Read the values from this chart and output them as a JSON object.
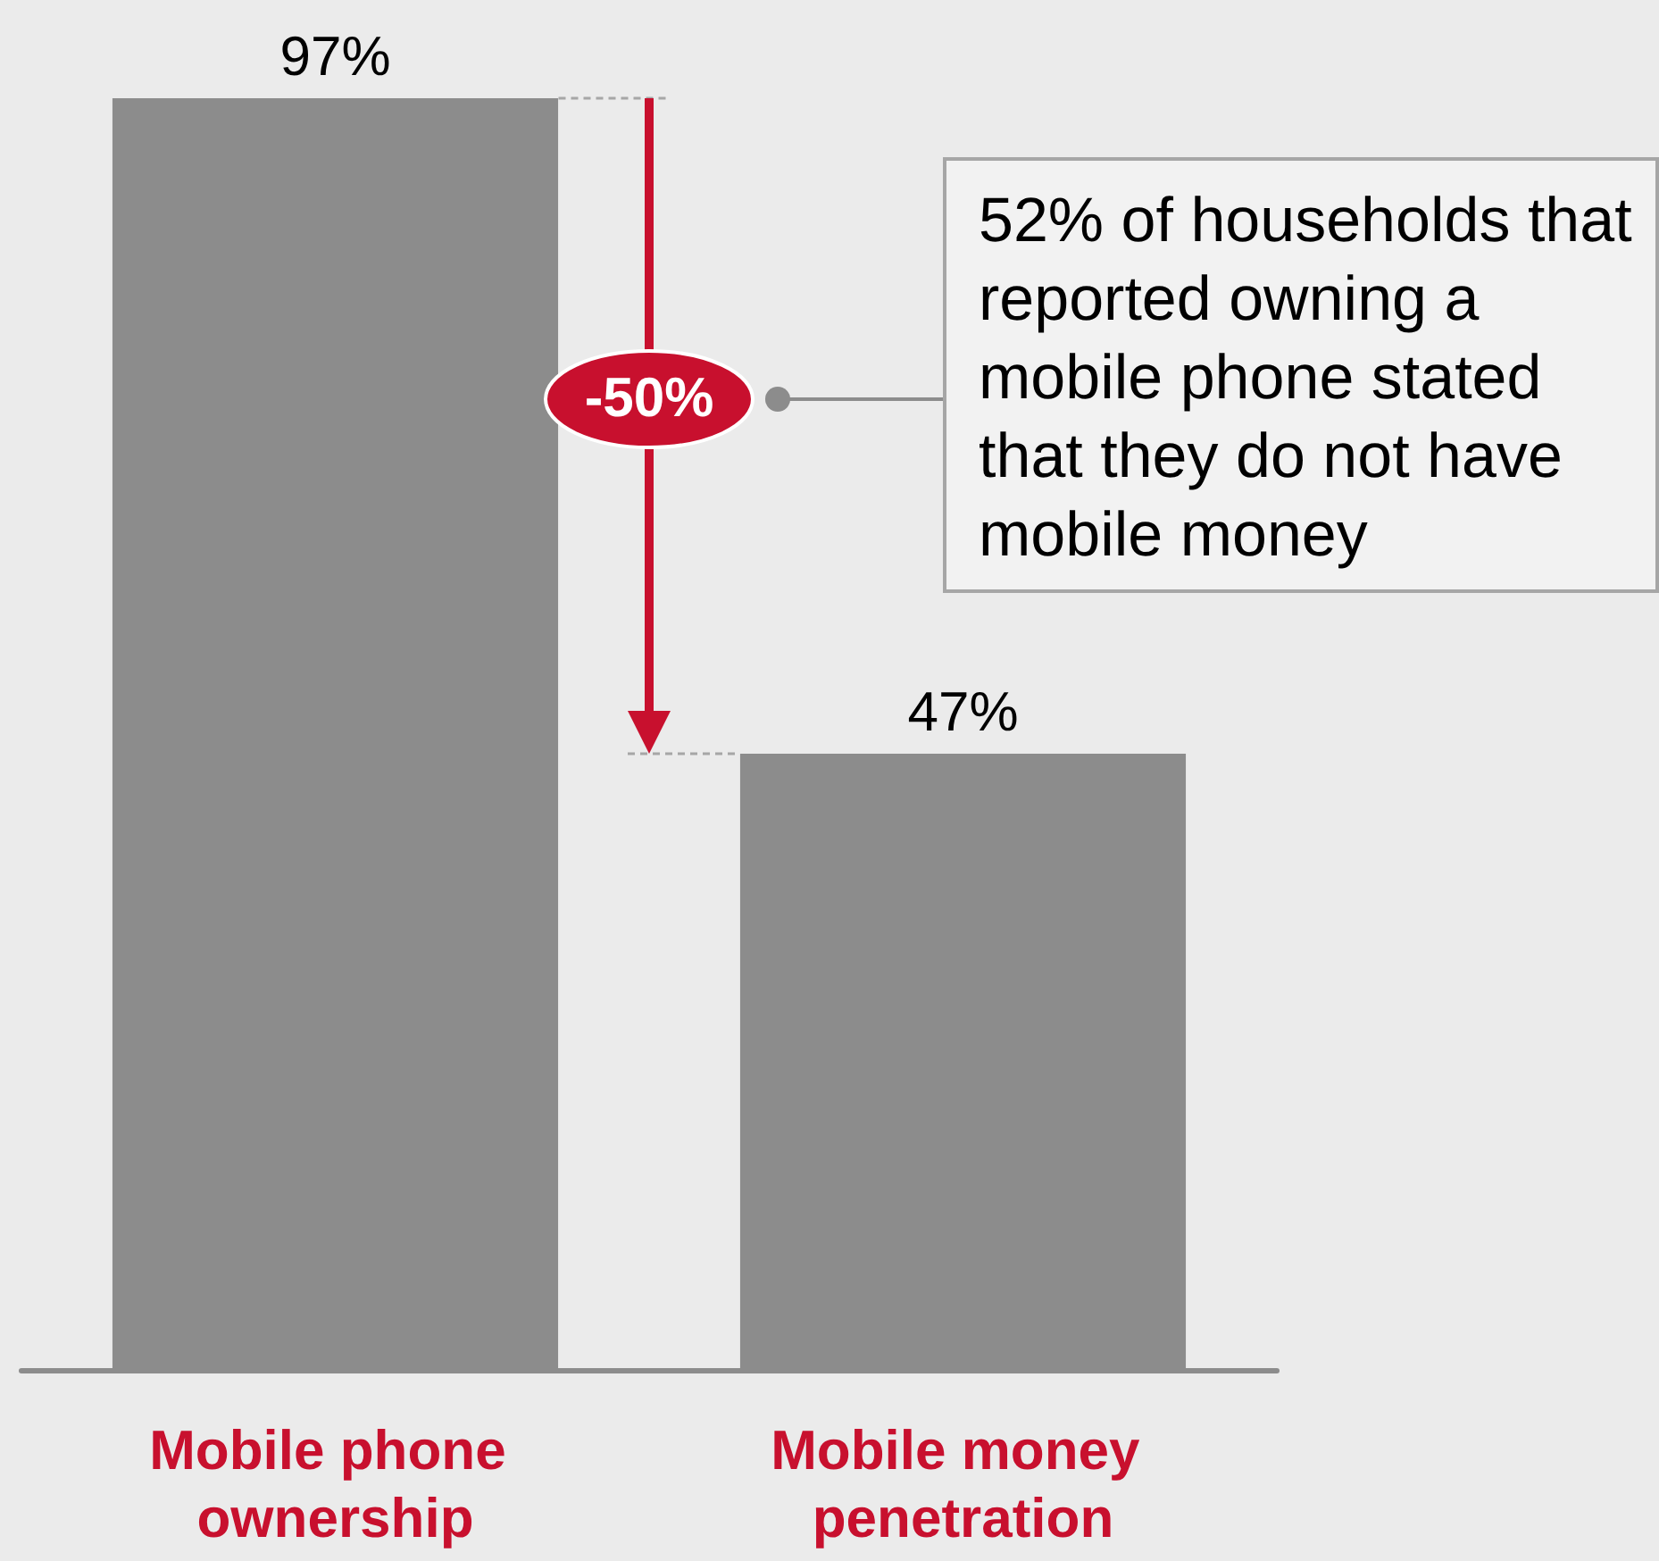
{
  "chart_data": {
    "type": "bar",
    "categories": [
      "Mobile phone ownership",
      "Mobile money penetration"
    ],
    "values": [
      97,
      47
    ],
    "value_labels": [
      "97%",
      "47%"
    ],
    "color": "#8c8c8c",
    "annotations": [
      "-50%",
      "52% of households that reported owning a mobile phone stated that they do not have mobile money"
    ]
  }
}
